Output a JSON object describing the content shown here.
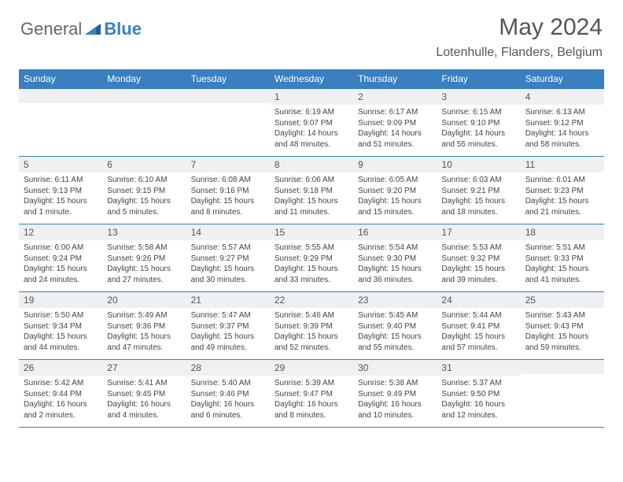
{
  "brand": {
    "part1": "General",
    "part2": "Blue"
  },
  "title": "May 2024",
  "location": "Lotenhulle, Flanders, Belgium",
  "colors": {
    "header_bg": "#3a7fbf",
    "header_text": "#ffffff",
    "daynum_bg": "#eef0f2",
    "border": "#3a7fbf",
    "body_text": "#444444"
  },
  "weekdays": [
    "Sunday",
    "Monday",
    "Tuesday",
    "Wednesday",
    "Thursday",
    "Friday",
    "Saturday"
  ],
  "weeks": [
    [
      {
        "n": "",
        "sr": "",
        "ss": "",
        "dl": ""
      },
      {
        "n": "",
        "sr": "",
        "ss": "",
        "dl": ""
      },
      {
        "n": "",
        "sr": "",
        "ss": "",
        "dl": ""
      },
      {
        "n": "1",
        "sr": "Sunrise: 6:19 AM",
        "ss": "Sunset: 9:07 PM",
        "dl": "Daylight: 14 hours and 48 minutes."
      },
      {
        "n": "2",
        "sr": "Sunrise: 6:17 AM",
        "ss": "Sunset: 9:09 PM",
        "dl": "Daylight: 14 hours and 51 minutes."
      },
      {
        "n": "3",
        "sr": "Sunrise: 6:15 AM",
        "ss": "Sunset: 9:10 PM",
        "dl": "Daylight: 14 hours and 55 minutes."
      },
      {
        "n": "4",
        "sr": "Sunrise: 6:13 AM",
        "ss": "Sunset: 9:12 PM",
        "dl": "Daylight: 14 hours and 58 minutes."
      }
    ],
    [
      {
        "n": "5",
        "sr": "Sunrise: 6:11 AM",
        "ss": "Sunset: 9:13 PM",
        "dl": "Daylight: 15 hours and 1 minute."
      },
      {
        "n": "6",
        "sr": "Sunrise: 6:10 AM",
        "ss": "Sunset: 9:15 PM",
        "dl": "Daylight: 15 hours and 5 minutes."
      },
      {
        "n": "7",
        "sr": "Sunrise: 6:08 AM",
        "ss": "Sunset: 9:16 PM",
        "dl": "Daylight: 15 hours and 8 minutes."
      },
      {
        "n": "8",
        "sr": "Sunrise: 6:06 AM",
        "ss": "Sunset: 9:18 PM",
        "dl": "Daylight: 15 hours and 11 minutes."
      },
      {
        "n": "9",
        "sr": "Sunrise: 6:05 AM",
        "ss": "Sunset: 9:20 PM",
        "dl": "Daylight: 15 hours and 15 minutes."
      },
      {
        "n": "10",
        "sr": "Sunrise: 6:03 AM",
        "ss": "Sunset: 9:21 PM",
        "dl": "Daylight: 15 hours and 18 minutes."
      },
      {
        "n": "11",
        "sr": "Sunrise: 6:01 AM",
        "ss": "Sunset: 9:23 PM",
        "dl": "Daylight: 15 hours and 21 minutes."
      }
    ],
    [
      {
        "n": "12",
        "sr": "Sunrise: 6:00 AM",
        "ss": "Sunset: 9:24 PM",
        "dl": "Daylight: 15 hours and 24 minutes."
      },
      {
        "n": "13",
        "sr": "Sunrise: 5:58 AM",
        "ss": "Sunset: 9:26 PM",
        "dl": "Daylight: 15 hours and 27 minutes."
      },
      {
        "n": "14",
        "sr": "Sunrise: 5:57 AM",
        "ss": "Sunset: 9:27 PM",
        "dl": "Daylight: 15 hours and 30 minutes."
      },
      {
        "n": "15",
        "sr": "Sunrise: 5:55 AM",
        "ss": "Sunset: 9:29 PM",
        "dl": "Daylight: 15 hours and 33 minutes."
      },
      {
        "n": "16",
        "sr": "Sunrise: 5:54 AM",
        "ss": "Sunset: 9:30 PM",
        "dl": "Daylight: 15 hours and 36 minutes."
      },
      {
        "n": "17",
        "sr": "Sunrise: 5:53 AM",
        "ss": "Sunset: 9:32 PM",
        "dl": "Daylight: 15 hours and 39 minutes."
      },
      {
        "n": "18",
        "sr": "Sunrise: 5:51 AM",
        "ss": "Sunset: 9:33 PM",
        "dl": "Daylight: 15 hours and 41 minutes."
      }
    ],
    [
      {
        "n": "19",
        "sr": "Sunrise: 5:50 AM",
        "ss": "Sunset: 9:34 PM",
        "dl": "Daylight: 15 hours and 44 minutes."
      },
      {
        "n": "20",
        "sr": "Sunrise: 5:49 AM",
        "ss": "Sunset: 9:36 PM",
        "dl": "Daylight: 15 hours and 47 minutes."
      },
      {
        "n": "21",
        "sr": "Sunrise: 5:47 AM",
        "ss": "Sunset: 9:37 PM",
        "dl": "Daylight: 15 hours and 49 minutes."
      },
      {
        "n": "22",
        "sr": "Sunrise: 5:46 AM",
        "ss": "Sunset: 9:39 PM",
        "dl": "Daylight: 15 hours and 52 minutes."
      },
      {
        "n": "23",
        "sr": "Sunrise: 5:45 AM",
        "ss": "Sunset: 9:40 PM",
        "dl": "Daylight: 15 hours and 55 minutes."
      },
      {
        "n": "24",
        "sr": "Sunrise: 5:44 AM",
        "ss": "Sunset: 9:41 PM",
        "dl": "Daylight: 15 hours and 57 minutes."
      },
      {
        "n": "25",
        "sr": "Sunrise: 5:43 AM",
        "ss": "Sunset: 9:43 PM",
        "dl": "Daylight: 15 hours and 59 minutes."
      }
    ],
    [
      {
        "n": "26",
        "sr": "Sunrise: 5:42 AM",
        "ss": "Sunset: 9:44 PM",
        "dl": "Daylight: 16 hours and 2 minutes."
      },
      {
        "n": "27",
        "sr": "Sunrise: 5:41 AM",
        "ss": "Sunset: 9:45 PM",
        "dl": "Daylight: 16 hours and 4 minutes."
      },
      {
        "n": "28",
        "sr": "Sunrise: 5:40 AM",
        "ss": "Sunset: 9:46 PM",
        "dl": "Daylight: 16 hours and 6 minutes."
      },
      {
        "n": "29",
        "sr": "Sunrise: 5:39 AM",
        "ss": "Sunset: 9:47 PM",
        "dl": "Daylight: 16 hours and 8 minutes."
      },
      {
        "n": "30",
        "sr": "Sunrise: 5:38 AM",
        "ss": "Sunset: 9:49 PM",
        "dl": "Daylight: 16 hours and 10 minutes."
      },
      {
        "n": "31",
        "sr": "Sunrise: 5:37 AM",
        "ss": "Sunset: 9:50 PM",
        "dl": "Daylight: 16 hours and 12 minutes."
      },
      {
        "n": "",
        "sr": "",
        "ss": "",
        "dl": ""
      }
    ]
  ]
}
